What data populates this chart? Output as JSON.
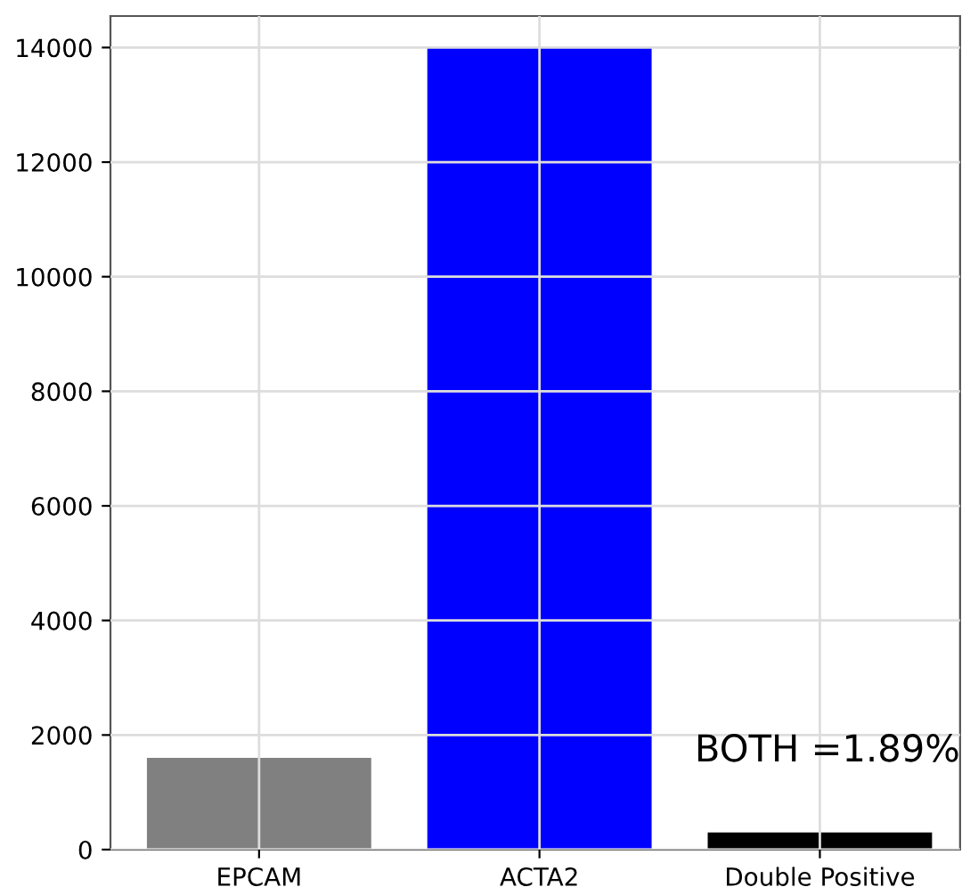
{
  "chart_data": {
    "type": "bar",
    "categories": [
      "EPCAM",
      "ACTA2",
      "Double Positive"
    ],
    "values": [
      1600,
      14000,
      300
    ],
    "colors": [
      "#808080",
      "#0000ff",
      "#000000"
    ],
    "ylim": [
      0,
      14550
    ],
    "yticks": [
      0,
      2000,
      4000,
      6000,
      8000,
      10000,
      12000,
      14000
    ],
    "grid": true,
    "annotations": [
      "BOTH =1.89%"
    ]
  }
}
